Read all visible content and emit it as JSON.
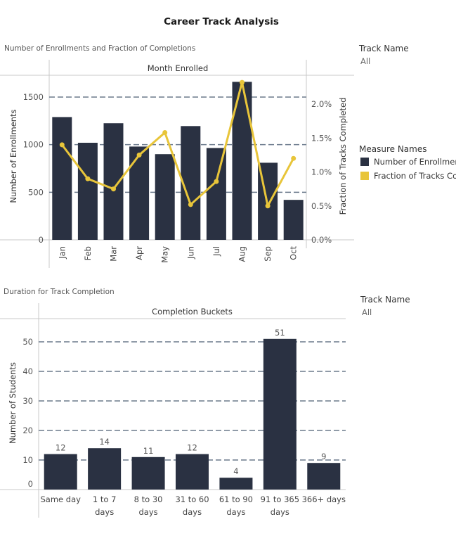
{
  "title": "Career Track Analysis",
  "chart1": {
    "subtitle": "Number of Enrollments and Fraction of Completions",
    "header": "Month Enrolled"
  },
  "chart2": {
    "subtitle": "Duration for Track Completion",
    "header": "Completion Buckets"
  },
  "filter1": {
    "label": "Track Name",
    "value": "All"
  },
  "filter2": {
    "label": "Track Name",
    "value": "All"
  },
  "legend": {
    "title": "Measure Names",
    "items": [
      {
        "label": "Number of Enrollments",
        "color": "#2a3142"
      },
      {
        "label": "Fraction of Tracks Completed",
        "color": "#e8c53a"
      }
    ]
  },
  "chart_data": [
    {
      "type": "bar",
      "title": "Number of Enrollments and Fraction of Completions",
      "column_header": "Month Enrolled",
      "categories": [
        "Jan",
        "Feb",
        "Mar",
        "Apr",
        "May",
        "Jun",
        "Jul",
        "Aug",
        "Sep",
        "Oct"
      ],
      "series": [
        {
          "name": "Number of Enrollments",
          "type": "bar",
          "axis": "left",
          "values": [
            1290,
            1020,
            1225,
            980,
            900,
            1195,
            965,
            1660,
            810,
            420
          ],
          "color": "#2a3142"
        },
        {
          "name": "Fraction of Tracks Completed",
          "type": "line",
          "axis": "right",
          "values": [
            1.4,
            0.9,
            0.75,
            1.25,
            1.58,
            0.52,
            0.86,
            2.32,
            0.5,
            1.2
          ],
          "color": "#e8c53a"
        }
      ],
      "ylabel": "Number of Enrollments",
      "ylim": [
        0,
        1700
      ],
      "yticks": [
        "0",
        "500",
        "1000",
        "1500"
      ],
      "y2label": "Fraction of Tracks Completed",
      "y2lim": [
        0,
        2.4
      ],
      "y2ticks": [
        "0.0%",
        "0.5%",
        "1.0%",
        "1.5%",
        "2.0%"
      ],
      "grid": "dashed"
    },
    {
      "type": "bar",
      "title": "Duration for Track Completion",
      "column_header": "Completion Buckets",
      "categories": [
        [
          "Same day"
        ],
        [
          "1 to 7",
          "days"
        ],
        [
          "8 to 30",
          "days"
        ],
        [
          "31 to 60",
          "days"
        ],
        [
          "61 to 90",
          "days"
        ],
        [
          "91 to 365",
          "days"
        ],
        [
          "366+ days"
        ]
      ],
      "values": [
        12,
        14,
        11,
        12,
        4,
        51,
        9
      ],
      "ylabel": "Number of Students",
      "ylim": [
        0,
        57
      ],
      "yticks": [
        "0",
        "10",
        "20",
        "30",
        "40",
        "50"
      ],
      "grid": "dashed"
    }
  ]
}
